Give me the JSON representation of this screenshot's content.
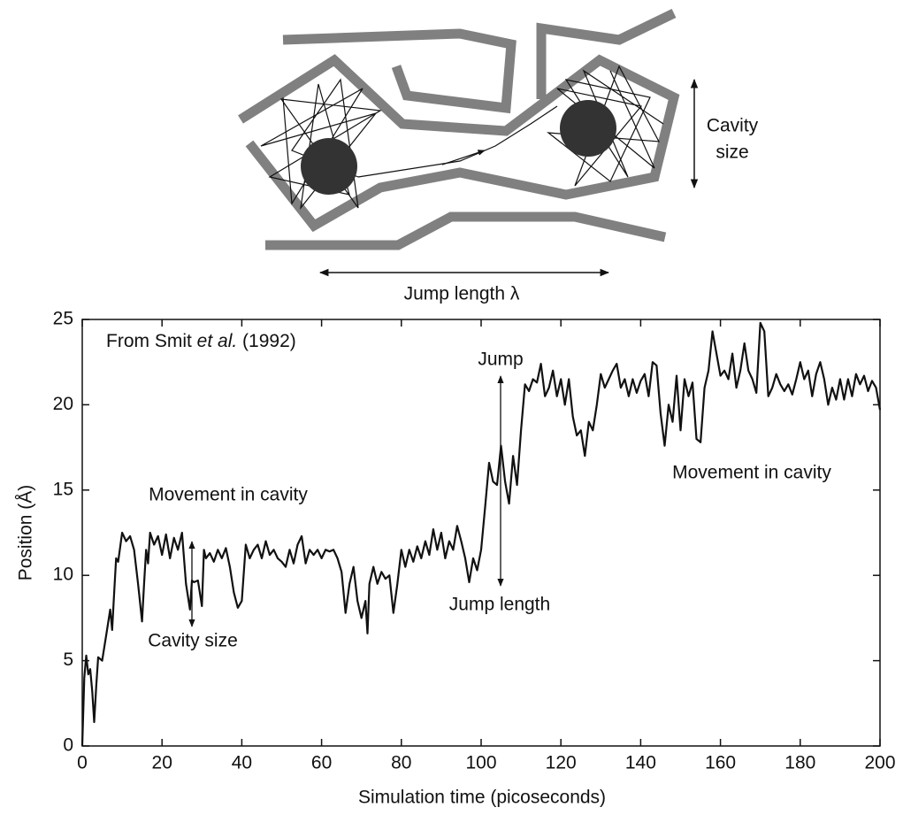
{
  "diagram": {
    "cavity_label": [
      "Cavity",
      "size"
    ],
    "jump_label": "Jump length λ"
  },
  "chart_data": {
    "type": "line",
    "source": [
      "From Smit ",
      "et al.",
      " (1992)"
    ],
    "xlabel": "Simulation time (picoseconds)",
    "ylabel": "Position (Å)",
    "annotations": [
      "Movement in cavity",
      "Cavity size",
      "Jump",
      "Jump length",
      "Movement in cavity"
    ],
    "color": "#111111",
    "xlim": [
      0,
      200
    ],
    "xticks": [
      0,
      20,
      40,
      60,
      80,
      100,
      120,
      140,
      160,
      180,
      200
    ],
    "ylim": [
      0,
      25
    ],
    "yticks": [
      0,
      5,
      10,
      15,
      20,
      25
    ],
    "x": [
      0,
      0.5,
      1,
      1.5,
      2,
      2.5,
      3,
      3.5,
      4,
      5,
      6,
      7,
      7.5,
      8,
      8.5,
      9,
      10,
      11,
      12,
      13,
      14,
      15,
      15.5,
      16,
      16.5,
      17,
      18,
      19,
      20,
      21,
      22,
      23,
      24,
      25,
      26,
      27,
      27.5,
      28,
      29,
      30,
      30.5,
      31,
      32,
      33,
      34,
      35,
      36,
      37,
      38,
      39,
      40,
      41,
      42,
      43,
      44,
      45,
      46,
      47,
      48,
      49,
      50,
      51,
      52,
      53,
      54,
      55,
      56,
      57,
      58,
      59,
      60,
      61,
      62,
      63,
      64,
      65,
      66,
      67,
      68,
      69,
      70,
      71,
      71.5,
      72,
      73,
      74,
      75,
      76,
      77,
      78,
      79,
      80,
      81,
      82,
      83,
      84,
      85,
      86,
      87,
      88,
      89,
      90,
      91,
      92,
      93,
      94,
      95,
      96,
      97,
      98,
      99,
      100,
      101,
      102,
      103,
      104,
      105,
      106,
      107,
      108,
      109,
      110,
      111,
      112,
      113,
      114,
      115,
      116,
      117,
      118,
      119,
      120,
      121,
      122,
      123,
      124,
      125,
      126,
      127,
      128,
      129,
      130,
      131,
      132,
      133,
      134,
      135,
      136,
      137,
      138,
      139,
      140,
      141,
      142,
      143,
      144,
      145,
      146,
      147,
      148,
      149,
      150,
      151,
      152,
      153,
      154,
      155,
      156,
      157,
      158,
      159,
      160,
      161,
      162,
      163,
      164,
      165,
      166,
      167,
      168,
      169,
      170,
      171,
      172,
      173,
      174,
      175,
      176,
      177,
      178,
      179,
      180,
      181,
      182,
      183,
      184,
      185,
      186,
      187,
      188,
      189,
      190,
      191,
      192,
      193,
      194,
      195,
      196,
      197,
      198,
      199,
      200
    ],
    "y": [
      0,
      4,
      5.3,
      4.2,
      4.5,
      3.2,
      1.4,
      3.5,
      5.2,
      5,
      6.5,
      8,
      6.8,
      9,
      11,
      10.8,
      12.5,
      12,
      12.3,
      11.5,
      9.5,
      7.3,
      9.5,
      11.5,
      10.7,
      12.5,
      11.8,
      12.3,
      11.2,
      12.4,
      11,
      12.2,
      11.5,
      12.5,
      9.5,
      8,
      9.7,
      9.6,
      9.7,
      8.2,
      11.5,
      11,
      11.3,
      10.8,
      11.5,
      11,
      11.6,
      10.5,
      9,
      8.1,
      8.5,
      11.8,
      11,
      11.5,
      11.8,
      11,
      12,
      11.2,
      11.5,
      11,
      10.8,
      10.5,
      11.5,
      10.7,
      11.8,
      12.3,
      10.7,
      11.5,
      11.2,
      11.5,
      11,
      11.5,
      11.4,
      11.5,
      11,
      10.2,
      7.8,
      9.5,
      10.5,
      8.5,
      7.5,
      8.5,
      6.6,
      9.5,
      10.5,
      9.5,
      10.2,
      9.8,
      10,
      7.8,
      9.5,
      11.5,
      10.5,
      11.5,
      10.8,
      11.7,
      11,
      12,
      11.2,
      12.7,
      11.5,
      12.5,
      11,
      12,
      11.5,
      12.9,
      12,
      11,
      9.6,
      11,
      10.3,
      11.5,
      14,
      16.6,
      15.5,
      15.3,
      17.6,
      15.5,
      14.2,
      17,
      15.3,
      18.5,
      21.2,
      20.8,
      21.5,
      21.3,
      22.4,
      20.5,
      21,
      22,
      20.5,
      21.5,
      20,
      21.5,
      19.3,
      18.2,
      18.5,
      17,
      19,
      18.5,
      20,
      21.8,
      21,
      21.5,
      22,
      22.4,
      21,
      21.5,
      20.5,
      21.5,
      20.7,
      21.4,
      21.8,
      20.5,
      22.5,
      22.3,
      19.5,
      17.6,
      20,
      19,
      21.7,
      18.5,
      21.5,
      20.5,
      21.3,
      18,
      17.8,
      21,
      22,
      24.3,
      23,
      21.7,
      22,
      21.5,
      23,
      21,
      22,
      23.6,
      22,
      21.5,
      20.7,
      24.8,
      24.3,
      20.5,
      21,
      21.8,
      21.2,
      20.8,
      21.2,
      20.6,
      21.5,
      22.5,
      21.5,
      22,
      20.5,
      21.8,
      22.5,
      21.5,
      20,
      21,
      20.3,
      21.5,
      20.3,
      21.5,
      20.5,
      21.8,
      21.2,
      21.7,
      20.8,
      21.4,
      21,
      19.7
    ]
  }
}
